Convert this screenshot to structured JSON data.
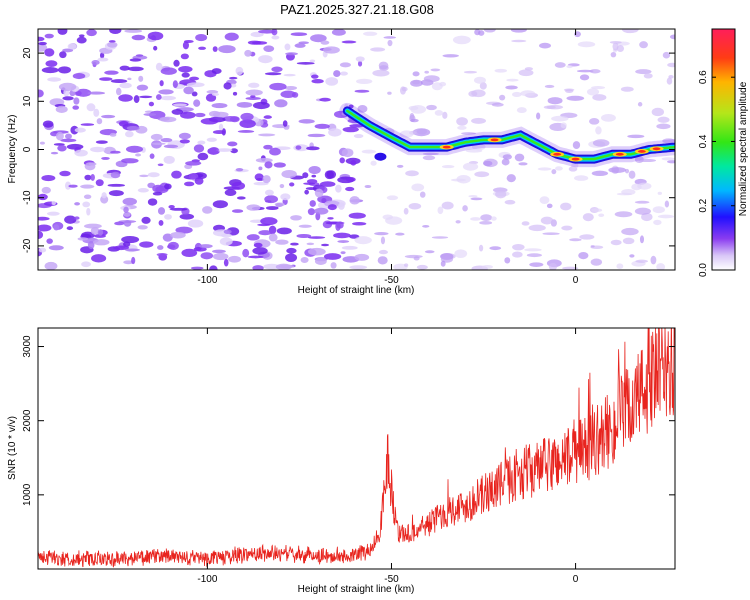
{
  "chart_data": [
    {
      "type": "heatmap",
      "title": "PAZ1.2025.327.21.18.G08",
      "xlabel": "Height of straight line (km)",
      "ylabel": "Frequency (Hz)",
      "xlim": [
        -146,
        27
      ],
      "ylim": [
        -25,
        25
      ],
      "x_ticks": [
        -100,
        -50,
        0
      ],
      "x_tick_labels": [
        "-100",
        "-50",
        "0"
      ],
      "y_ticks": [
        -20,
        -10,
        0,
        10,
        20
      ],
      "y_tick_labels": [
        "-20",
        "-10",
        "0",
        "10",
        "20"
      ],
      "colorbar": {
        "label": "Normalized spectral amplitude",
        "range": [
          0,
          0.75
        ],
        "ticks": [
          0.0,
          0.2,
          0.4,
          0.6
        ],
        "tick_labels": [
          "0.0",
          "0.2",
          "0.4",
          "0.6"
        ]
      },
      "ridge": {
        "x": [
          -62,
          -56,
          -50,
          -45,
          -40,
          -35,
          -30,
          -25,
          -20,
          -15,
          -10,
          -5,
          0,
          5,
          10,
          15,
          20,
          27
        ],
        "y": [
          8,
          5,
          2.5,
          0.5,
          0.5,
          0.5,
          1.5,
          2,
          2,
          3,
          1,
          -1,
          -2,
          -2,
          -1,
          -1,
          0,
          0.5
        ]
      }
    },
    {
      "type": "line",
      "xlabel": "Height of straight line (km)",
      "ylabel": "SNR (10 * v/v)",
      "xlim": [
        -146,
        27
      ],
      "ylim": [
        0,
        3250
      ],
      "x_ticks": [
        -100,
        -50,
        0
      ],
      "x_tick_labels": [
        "-100",
        "-50",
        "0"
      ],
      "y_ticks": [
        1000,
        2000,
        3000
      ],
      "y_tick_labels": [
        "1000",
        "2000",
        "3000"
      ],
      "color": "#e8241e",
      "series": [
        {
          "name": "SNR",
          "x": [
            -146,
            -140,
            -130,
            -120,
            -110,
            -100,
            -90,
            -80,
            -70,
            -60,
            -56,
            -53,
            -52,
            -51,
            -50,
            -48,
            -45,
            -40,
            -35,
            -30,
            -25,
            -20,
            -15,
            -10,
            -5,
            0,
            5,
            10,
            15,
            20,
            25,
            27
          ],
          "y": [
            180,
            140,
            130,
            150,
            170,
            140,
            200,
            210,
            180,
            180,
            250,
            500,
            1150,
            1500,
            1000,
            480,
            470,
            600,
            780,
            850,
            1000,
            1150,
            1300,
            1350,
            1450,
            1550,
            1700,
            1900,
            2200,
            2500,
            2750,
            2700
          ]
        }
      ]
    }
  ]
}
